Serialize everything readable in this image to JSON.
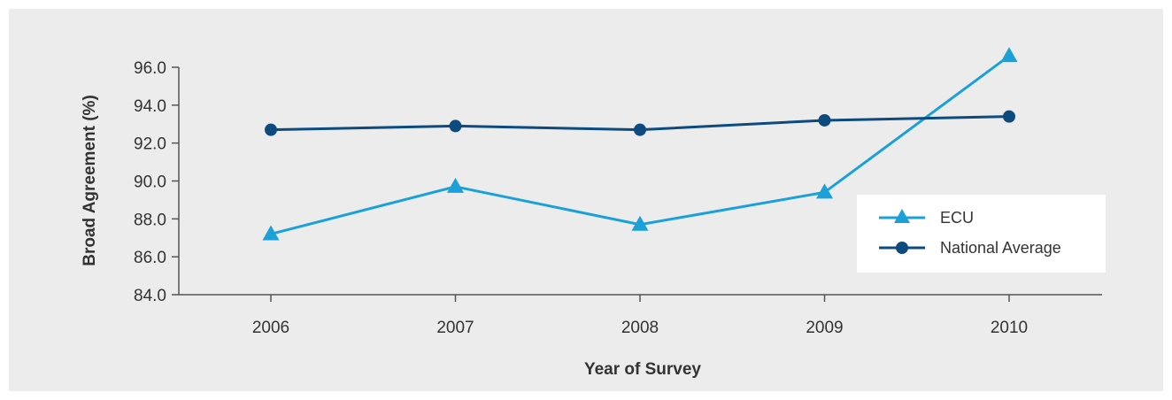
{
  "chart_data": {
    "type": "line",
    "xlabel": "Year of Survey",
    "ylabel": "Broad Agreement (%)",
    "x": [
      "2006",
      "2007",
      "2008",
      "2009",
      "2010"
    ],
    "ylim": [
      84.0,
      96.0
    ],
    "yticks": [
      "84.0",
      "86.0",
      "88.0",
      "90.0",
      "92.0",
      "94.0",
      "96.0"
    ],
    "grid": false,
    "legend_position": "right",
    "series": [
      {
        "name": "ECU",
        "marker": "triangle",
        "color": "#1ba0d8",
        "values": [
          87.2,
          89.7,
          87.7,
          89.4,
          96.6
        ]
      },
      {
        "name": "National Average",
        "marker": "circle",
        "color": "#0d4a7e",
        "values": [
          92.7,
          92.9,
          92.7,
          93.2,
          93.4
        ]
      }
    ]
  }
}
